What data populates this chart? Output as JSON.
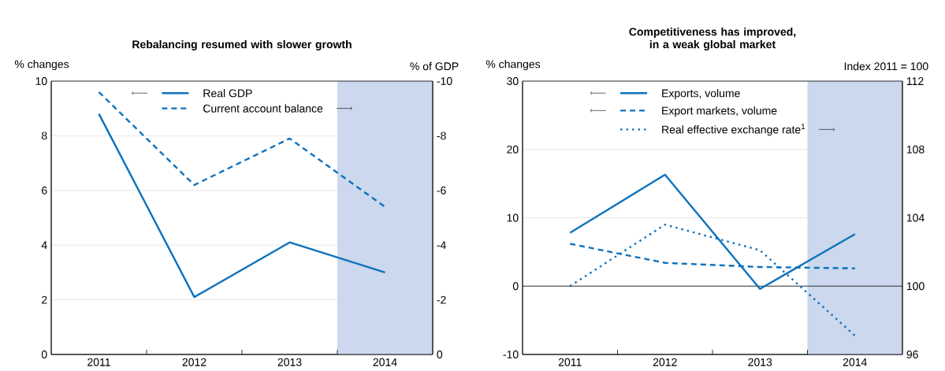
{
  "chart_data": [
    {
      "type": "line",
      "title": "Rebalancing resumed with slower growth",
      "ylabel": "% changes",
      "y2label": "% of GDP",
      "x": [
        2011,
        2012,
        2013,
        2014
      ],
      "xlim": [
        2010.5,
        2014.5
      ],
      "xticks": [
        2011,
        {
          "value": 2011.5,
          "label": null
        },
        2012,
        {
          "value": 2012.5,
          "label": null
        },
        2013,
        {
          "value": 2013.5,
          "label": null
        },
        2014
      ],
      "ylim": [
        0,
        10
      ],
      "yticks": [
        0,
        2,
        4,
        6,
        8,
        10
      ],
      "y2lim": [
        0,
        -10
      ],
      "y2ticks": [
        0,
        -2,
        -4,
        -6,
        -8,
        -10
      ],
      "grid": "y",
      "legend": "top",
      "bands": [
        {
          "axis": "x",
          "from": 2013.5,
          "to": 2014.5,
          "color": "#cbd8ed"
        }
      ],
      "series": [
        {
          "name": "Real GDP",
          "color": "#0d72bd",
          "line_style": "solid",
          "values": [
            8.8,
            2.1,
            4.1,
            3.0
          ]
        },
        {
          "name": "Current account balance",
          "color": "#0d72bd",
          "line_style": "dashed",
          "axis": "y2",
          "values": [
            -9.6,
            -6.2,
            -7.9,
            -5.4
          ]
        }
      ]
    },
    {
      "type": "line",
      "title": "Competitiveness has improved, in a weak global market",
      "ylabel": "% changes",
      "y2label": "Index 2011 = 100",
      "x": [
        2011,
        2012,
        2013,
        2014
      ],
      "xlim": [
        2010.5,
        2014.5
      ],
      "xticks": [
        2011,
        {
          "value": 2011.5,
          "label": null
        },
        2012,
        {
          "value": 2012.5,
          "label": null
        },
        2013,
        {
          "value": 2013.5,
          "label": null
        },
        2014
      ],
      "ylim": [
        -10,
        30
      ],
      "yticks": [
        -10,
        0,
        10,
        20,
        30
      ],
      "y2lim": [
        96,
        112
      ],
      "y2ticks": [
        96,
        100,
        104,
        108,
        112
      ],
      "grid": "y",
      "legend": "top",
      "bands": [
        {
          "axis": "x",
          "from": 2013.5,
          "to": 2014.5,
          "color": "#cbd8ed"
        }
      ],
      "ref_lines": [
        {
          "axis": "y",
          "value": 0,
          "color": "#000000"
        }
      ],
      "series": [
        {
          "name": "Exports, volume",
          "color": "#0d72bd",
          "line_style": "solid",
          "values": [
            7.8,
            16.3,
            -0.4,
            7.6
          ]
        },
        {
          "name": "Export markets, volume",
          "color": "#0d72bd",
          "line_style": "dashed",
          "values": [
            6.2,
            3.4,
            2.8,
            2.6
          ]
        },
        {
          "name": "Real effective exchange rate$^{1}$",
          "color": "#0d72bd",
          "line_style": "dotted",
          "axis": "y2",
          "values": [
            100,
            103.6,
            102.1,
            97.1
          ]
        }
      ]
    }
  ]
}
